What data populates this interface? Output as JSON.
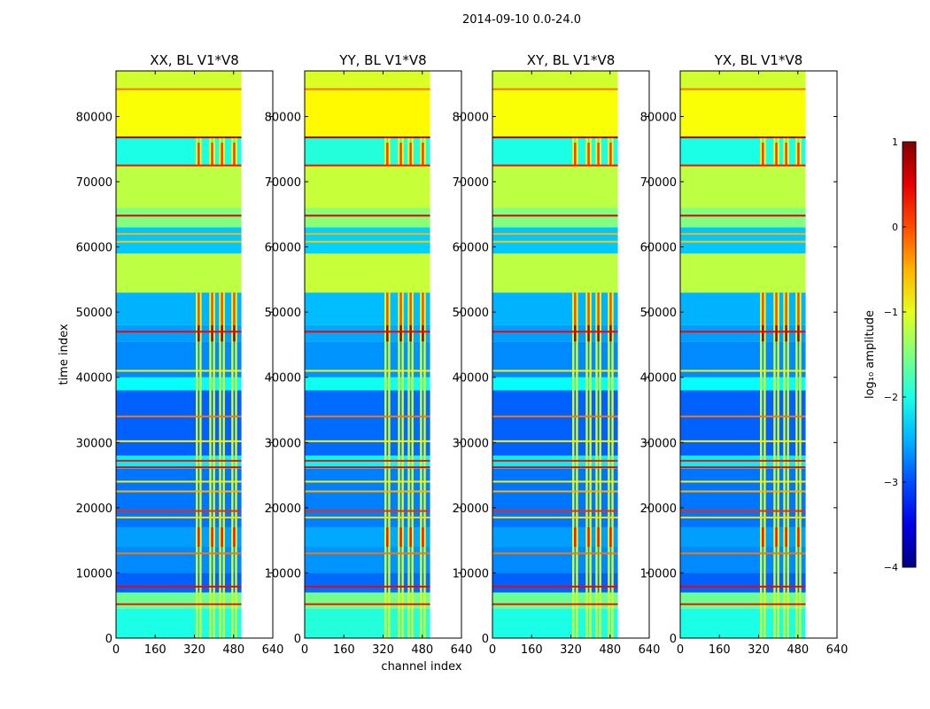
{
  "chart_data": {
    "type": "heatmap",
    "title": "2014-09-10 0.0-24.0",
    "xlabel": "channel index",
    "ylabel": "time index",
    "xlim": [
      0,
      640
    ],
    "ylim": [
      0,
      87000
    ],
    "data_channels": [
      0,
      512
    ],
    "xticks": [
      0,
      160,
      320,
      480,
      640
    ],
    "yticks": [
      0,
      10000,
      20000,
      30000,
      40000,
      50000,
      60000,
      70000,
      80000
    ],
    "panels": [
      {
        "title": "XX, BL V1*V8"
      },
      {
        "title": "YY, BL V1*V8"
      },
      {
        "title": "XY, BL V1*V8"
      },
      {
        "title": "YX, BL V1*V8"
      }
    ],
    "colorbar": {
      "label": "log₁₀ amplitude",
      "range": [
        -4,
        1
      ],
      "ticks": [
        1,
        0,
        -1,
        -2,
        -3,
        -4
      ],
      "tick_labels": [
        "1",
        "0",
        "−1",
        "−2",
        "−3",
        "−4"
      ]
    },
    "bands": [
      {
        "t0": 0,
        "t1": 4500,
        "level": -2.0
      },
      {
        "t0": 4500,
        "t1": 7000,
        "level": -1.6
      },
      {
        "t0": 7000,
        "t1": 10000,
        "level": -2.9
      },
      {
        "t0": 10000,
        "t1": 14000,
        "level": -2.7
      },
      {
        "t0": 14000,
        "t1": 17000,
        "level": -2.6
      },
      {
        "t0": 17000,
        "t1": 26000,
        "level": -2.8
      },
      {
        "t0": 26000,
        "t1": 28000,
        "level": -2.2
      },
      {
        "t0": 28000,
        "t1": 38000,
        "level": -2.9
      },
      {
        "t0": 38000,
        "t1": 40000,
        "level": -2.1
      },
      {
        "t0": 40000,
        "t1": 45500,
        "level": -2.7
      },
      {
        "t0": 45500,
        "t1": 48000,
        "level": -2.6
      },
      {
        "t0": 48000,
        "t1": 53000,
        "level": -2.5
      },
      {
        "t0": 53000,
        "t1": 59000,
        "level": -1.2
      },
      {
        "t0": 59000,
        "t1": 63000,
        "level": -2.4
      },
      {
        "t0": 63000,
        "t1": 66000,
        "level": -1.5
      },
      {
        "t0": 66000,
        "t1": 72500,
        "level": -1.2
      },
      {
        "t0": 72500,
        "t1": 77000,
        "level": -2.0
      },
      {
        "t0": 77000,
        "t1": 84000,
        "level": -0.9
      },
      {
        "t0": 84000,
        "t1": 87000,
        "level": -1.1
      }
    ],
    "stripes": [
      {
        "t": 5200,
        "level": 0.3
      },
      {
        "t": 7900,
        "level": 0.4
      },
      {
        "t": 13000,
        "level": -0.2
      },
      {
        "t": 18500,
        "level": -0.7
      },
      {
        "t": 19500,
        "level": 0.2
      },
      {
        "t": 22500,
        "level": -0.5
      },
      {
        "t": 24000,
        "level": -0.8
      },
      {
        "t": 26200,
        "level": 0.5
      },
      {
        "t": 27200,
        "level": 0.3
      },
      {
        "t": 30200,
        "level": -0.8
      },
      {
        "t": 34000,
        "level": -0.2
      },
      {
        "t": 41000,
        "level": -0.8
      },
      {
        "t": 47000,
        "level": 0.4
      },
      {
        "t": 60800,
        "level": -0.6
      },
      {
        "t": 62000,
        "level": -0.5
      },
      {
        "t": 64800,
        "level": 0.5
      },
      {
        "t": 72500,
        "level": 0.3
      },
      {
        "t": 76800,
        "level": 0.6
      },
      {
        "t": 84200,
        "level": -0.2
      }
    ],
    "rfi_columns": [
      330,
      345,
      385,
      400,
      425,
      440,
      475,
      490
    ],
    "rfi_blocks": [
      {
        "t0": 14000,
        "t1": 17000,
        "level": 0.3
      },
      {
        "t0": 45500,
        "t1": 48000,
        "level": 0.9
      },
      {
        "t0": 48000,
        "t1": 53000,
        "level": 0.0
      },
      {
        "t0": 72500,
        "t1": 76000,
        "level": 0.1
      }
    ]
  }
}
